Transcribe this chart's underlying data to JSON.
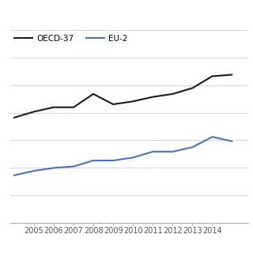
{
  "years": [
    2004,
    2005,
    2006,
    2007,
    2008,
    2009,
    2010,
    2011,
    2012,
    2013,
    2014,
    2015
  ],
  "oecd37": [
    1.56,
    1.6,
    1.63,
    1.63,
    1.72,
    1.65,
    1.67,
    1.7,
    1.72,
    1.76,
    1.84,
    1.85
  ],
  "eu": [
    1.17,
    1.2,
    1.22,
    1.23,
    1.27,
    1.27,
    1.29,
    1.33,
    1.33,
    1.36,
    1.43,
    1.4
  ],
  "oecd_label": "OECD-37",
  "eu_label": "EU-2",
  "oecd_color": "#1a1a1a",
  "eu_color": "#4472c4",
  "line_width": 1.5,
  "ylim": [
    0.85,
    2.15
  ],
  "xlim": [
    2003.8,
    2015.8
  ],
  "xticks": [
    2005,
    2006,
    2007,
    2008,
    2009,
    2010,
    2011,
    2012,
    2013,
    2014
  ],
  "n_hgrid": 8,
  "bg_color": "#ffffff",
  "grid_color": "#d0d0d0"
}
